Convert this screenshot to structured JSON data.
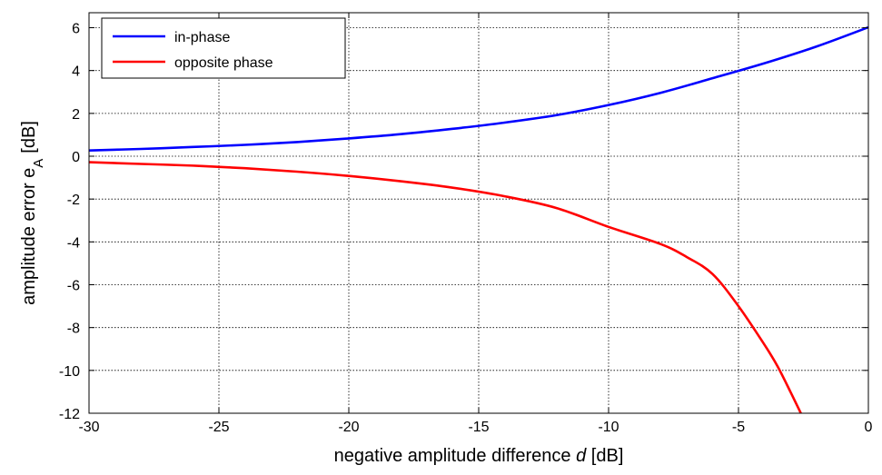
{
  "chart_data": {
    "type": "line",
    "title": "",
    "xlabel": "negative amplitude difference",
    "xlabel_symbol": "d",
    "xlabel_unit": "[dB]",
    "ylabel": "amplitude error e",
    "ylabel_subscript": "A",
    "ylabel_unit": "[dB]",
    "xlim": [
      -30,
      0
    ],
    "ylim": [
      -12,
      6.7
    ],
    "xticks": [
      -30,
      -25,
      -20,
      -15,
      -10,
      -5,
      0
    ],
    "yticks": [
      -12,
      -10,
      -8,
      -6,
      -4,
      -2,
      0,
      2,
      4,
      6
    ],
    "grid": true,
    "legend_position": "top-left",
    "series": [
      {
        "name": "in-phase",
        "color": "#0000ff",
        "x": [
          -30,
          -28,
          -26,
          -24,
          -22,
          -20,
          -18,
          -16,
          -14,
          -12,
          -10,
          -8,
          -6,
          -4,
          -2,
          0
        ],
        "y": [
          0.27,
          0.34,
          0.43,
          0.53,
          0.66,
          0.83,
          1.03,
          1.28,
          1.57,
          1.92,
          2.39,
          2.96,
          3.64,
          4.34,
          5.12,
          6.02
        ]
      },
      {
        "name": "opposite phase",
        "color": "#ff0000",
        "x": [
          -30,
          -28,
          -26,
          -24,
          -22,
          -20,
          -18,
          -16,
          -14,
          -12,
          -10,
          -8,
          -7,
          -6,
          -5,
          -4,
          -3.5,
          -3,
          -2.6
        ],
        "y": [
          -0.28,
          -0.36,
          -0.44,
          -0.56,
          -0.72,
          -0.92,
          -1.17,
          -1.47,
          -1.87,
          -2.42,
          -3.3,
          -4.1,
          -4.7,
          -5.5,
          -7.0,
          -8.8,
          -9.8,
          -11.0,
          -12.0
        ]
      }
    ]
  }
}
